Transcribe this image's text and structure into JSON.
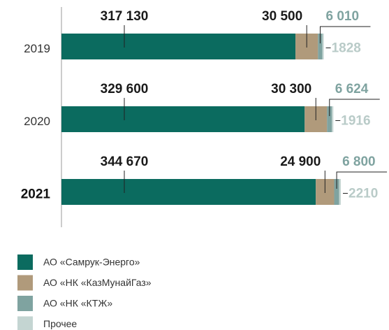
{
  "chart_data": {
    "type": "stacked-bar-horizontal",
    "categories": [
      "2019",
      "2020",
      "2021"
    ],
    "series": [
      {
        "name": "АО «Самрук-Энерго»",
        "color": "#0b6b5f",
        "label_color": "#1a1a1a",
        "values": [
          317130,
          329600,
          344670
        ],
        "value_labels": [
          "317 130",
          "329 600",
          "344 670"
        ]
      },
      {
        "name": "АО «НК «КазМунайГаз»",
        "color": "#b09a7b",
        "label_color": "#1a1a1a",
        "values": [
          30500,
          30300,
          24900
        ],
        "value_labels": [
          "30 500",
          "30 300",
          "24 900"
        ]
      },
      {
        "name": "АО «НК «КТЖ»",
        "color": "#7fa3a0",
        "label_color": "#7fa3a0",
        "values": [
          6010,
          6624,
          6800
        ],
        "value_labels": [
          "6 010",
          "6 624",
          "6 800"
        ]
      },
      {
        "name": "Прочее",
        "color": "#c4d5d2",
        "label_color": "#b9cbc8",
        "values": [
          1828,
          1916,
          2210
        ]
      }
    ]
  }
}
